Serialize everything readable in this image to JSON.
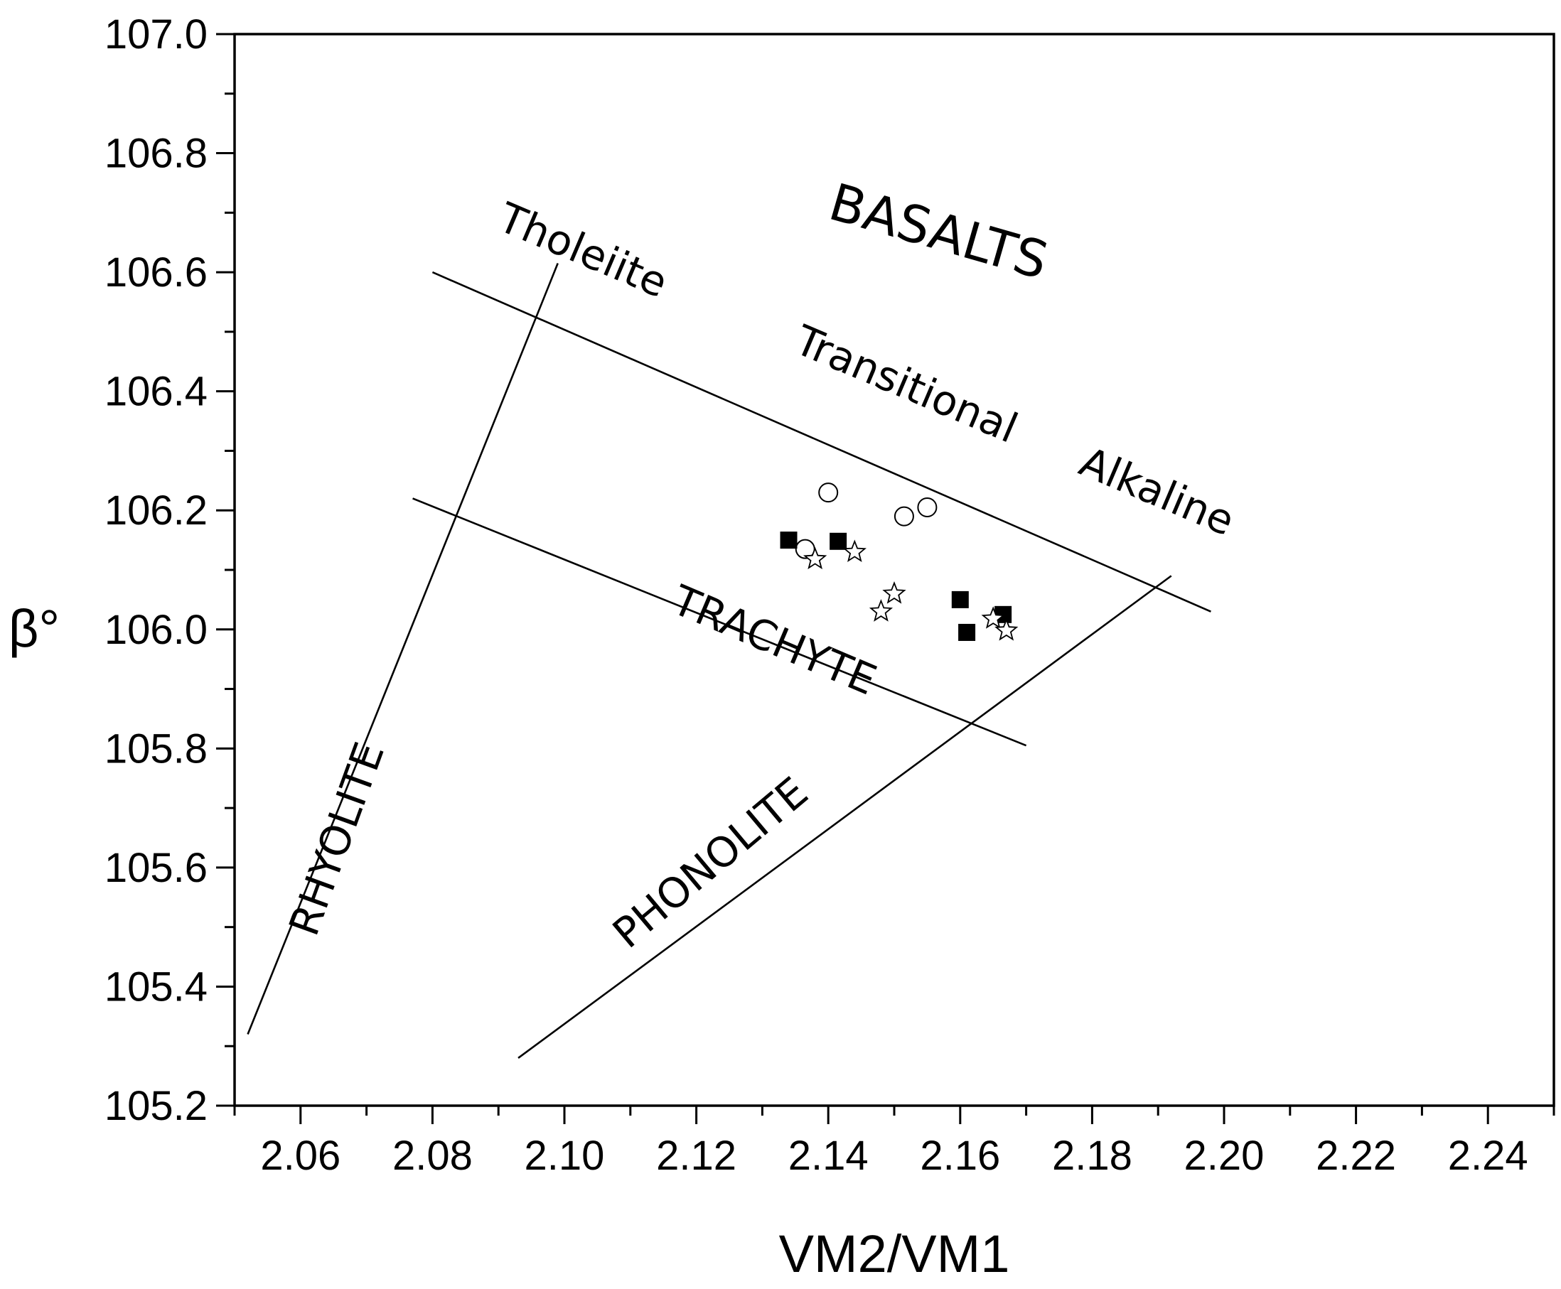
{
  "chart_data": {
    "type": "scatter",
    "xlabel": "VM2/VM1",
    "ylabel": "β°",
    "xlim": [
      2.05,
      2.25
    ],
    "ylim": [
      105.2,
      107.0
    ],
    "x_ticks": [
      "2.06",
      "2.08",
      "2.10",
      "2.12",
      "2.14",
      "2.16",
      "2.18",
      "2.20",
      "2.22",
      "2.24"
    ],
    "y_ticks": [
      "105.2",
      "105.4",
      "105.6",
      "105.8",
      "106.0",
      "106.2",
      "106.4",
      "106.6",
      "106.8",
      "107.0"
    ],
    "grid": false,
    "legend": "none",
    "series": [
      {
        "marker": "open-circle",
        "points": [
          [
            2.14,
            106.23
          ],
          [
            2.1515,
            106.19
          ],
          [
            2.155,
            106.205
          ],
          [
            2.1365,
            106.135
          ]
        ]
      },
      {
        "marker": "filled-square",
        "points": [
          [
            2.134,
            106.15
          ],
          [
            2.1415,
            106.148
          ],
          [
            2.16,
            106.05
          ],
          [
            2.161,
            105.995
          ],
          [
            2.1665,
            106.025
          ]
        ]
      },
      {
        "marker": "open-star",
        "points": [
          [
            2.138,
            106.118
          ],
          [
            2.144,
            106.13
          ],
          [
            2.148,
            106.03
          ],
          [
            2.15,
            106.06
          ],
          [
            2.165,
            106.018
          ],
          [
            2.167,
            105.998
          ]
        ]
      }
    ],
    "boundary_lines": [
      {
        "name": "tholeiite-line",
        "from": [
          2.052,
          105.32
        ],
        "to": [
          2.099,
          106.615
        ]
      },
      {
        "name": "upper-transitional-line",
        "from": [
          2.08,
          106.6
        ],
        "to": [
          2.198,
          106.03
        ]
      },
      {
        "name": "middle-trachyte-line",
        "from": [
          2.077,
          106.22
        ],
        "to": [
          2.17,
          105.805
        ]
      },
      {
        "name": "phonolite-line",
        "from": [
          2.093,
          105.28
        ],
        "to": [
          2.192,
          106.09
        ]
      }
    ],
    "annotations": [
      {
        "name": "label-basalts",
        "text": "BASALTS",
        "x": 2.156,
        "y": 106.64,
        "angle": 16,
        "size": 72
      },
      {
        "name": "label-tholeiite",
        "text": "Tholeiite",
        "x": 2.102,
        "y": 106.615,
        "angle": 23,
        "size": 58
      },
      {
        "name": "label-transitional",
        "text": "Transitional",
        "x": 2.151,
        "y": 106.39,
        "angle": 23,
        "size": 58
      },
      {
        "name": "label-alkaline",
        "text": "Alkaline",
        "x": 2.189,
        "y": 106.21,
        "angle": 23,
        "size": 58
      },
      {
        "name": "label-trachyte",
        "text": "TRACHYTE",
        "x": 2.131,
        "y": 105.96,
        "angle": 23,
        "size": 58
      },
      {
        "name": "label-rhyolite",
        "text": "RHYOLITE",
        "x": 2.0675,
        "y": 105.64,
        "angle": -70,
        "size": 58
      },
      {
        "name": "label-phonolite",
        "text": "PHONOLITE",
        "x": 2.1235,
        "y": 105.59,
        "angle": -40,
        "size": 58
      }
    ]
  }
}
